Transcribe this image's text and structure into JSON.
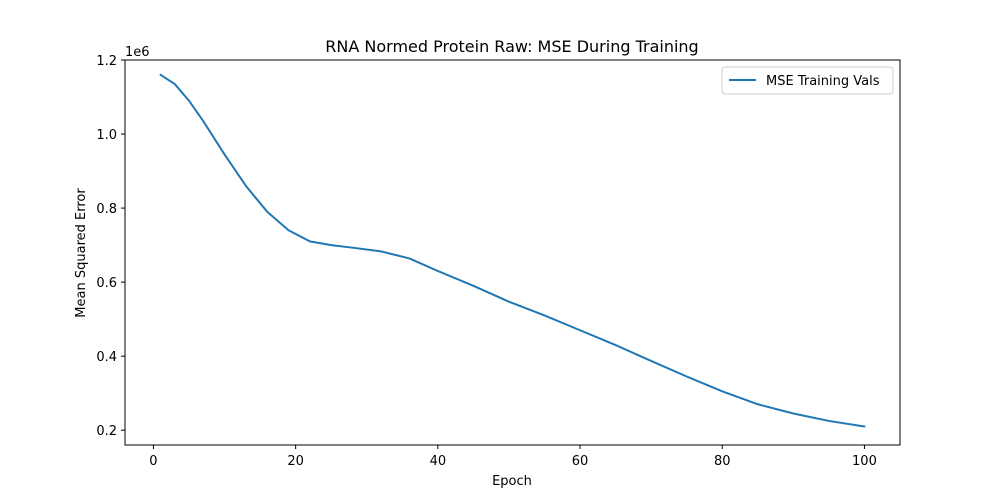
{
  "chart_data": {
    "type": "line",
    "title": "RNA Normed Protein Raw: MSE During Training",
    "xlabel": "Epoch",
    "ylabel": "Mean Squared Error",
    "y_offset_label": "1e6",
    "xlim": [
      -4,
      105
    ],
    "ylim": [
      0.16,
      1.2
    ],
    "x_ticks": [
      0,
      20,
      40,
      60,
      80,
      100
    ],
    "x_tick_labels": [
      "0",
      "20",
      "40",
      "60",
      "80",
      "100"
    ],
    "y_ticks": [
      0.2,
      0.4,
      0.6,
      0.8,
      1.0,
      1.2
    ],
    "y_tick_labels": [
      "0.2",
      "0.4",
      "0.6",
      "0.8",
      "1.0",
      "1.2"
    ],
    "grid": false,
    "legend_position": "top-right",
    "series": [
      {
        "name": "MSE Training Vals",
        "color": "#1f77b4",
        "x": [
          1,
          3,
          5,
          7,
          10,
          13,
          16,
          19,
          22,
          25,
          28,
          32,
          36,
          40,
          45,
          50,
          55,
          60,
          65,
          70,
          75,
          80,
          85,
          90,
          95,
          100
        ],
        "values": [
          1.16,
          1.135,
          1.09,
          1.035,
          0.945,
          0.86,
          0.79,
          0.74,
          0.71,
          0.7,
          0.693,
          0.683,
          0.664,
          0.63,
          0.59,
          0.547,
          0.51,
          0.47,
          0.43,
          0.387,
          0.345,
          0.305,
          0.27,
          0.245,
          0.225,
          0.21
        ]
      }
    ]
  }
}
